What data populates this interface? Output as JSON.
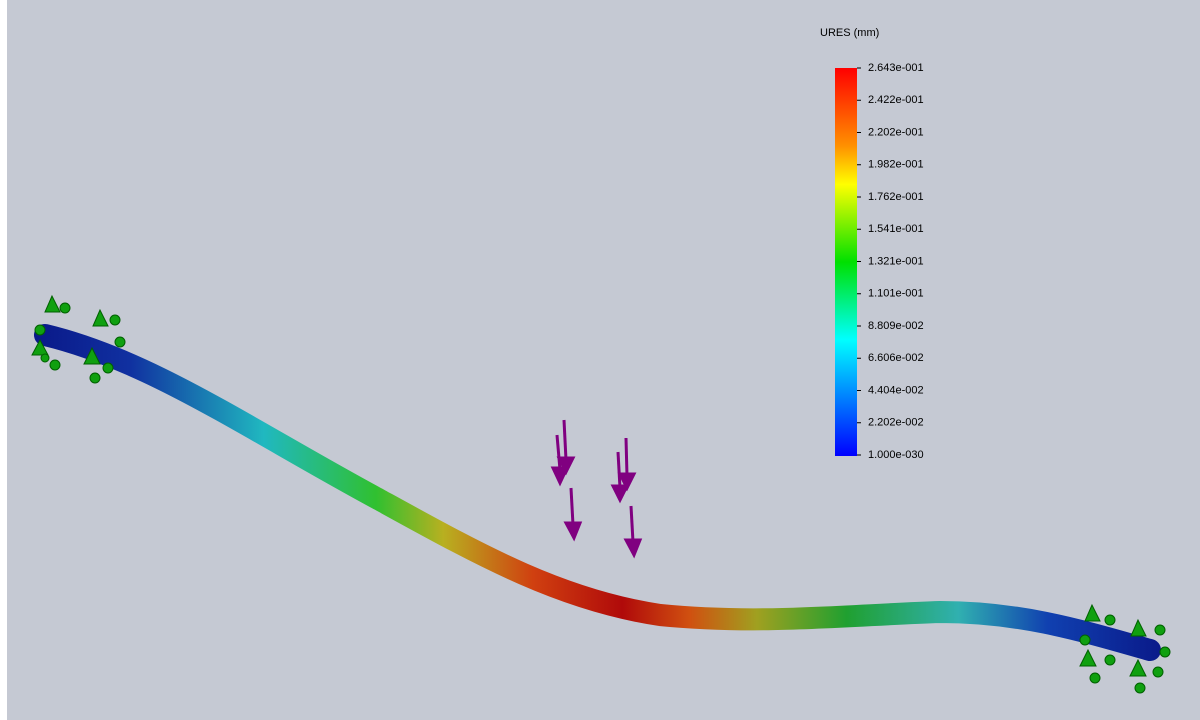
{
  "legend": {
    "title": "URES (mm)",
    "labels": [
      "2.643e-001",
      "2.422e-001",
      "2.202e-001",
      "1.982e-001",
      "1.762e-001",
      "1.541e-001",
      "1.321e-001",
      "1.101e-001",
      "8.809e-002",
      "6.606e-002",
      "4.404e-002",
      "2.202e-002",
      "1.000e-030"
    ]
  }
}
